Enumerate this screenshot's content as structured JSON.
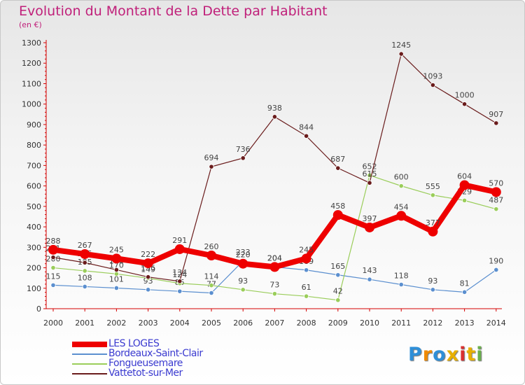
{
  "title": "Evolution du Montant de la Dette par Habitant",
  "unit": "(en €)",
  "logo": "Proxiti",
  "colors": {
    "title": "#c0207a",
    "axis": "#d40000",
    "tick_text": "#333333",
    "label_text": "#444444",
    "legend_text": "#3b3bd0"
  },
  "chart_data": {
    "type": "line",
    "title": "Evolution du Montant de la Dette par Habitant",
    "subtitle": "(en €)",
    "x": [
      "2000",
      "2001",
      "2002",
      "2003",
      "2004",
      "2005",
      "2006",
      "2007",
      "2008",
      "2009",
      "2010",
      "2011",
      "2012",
      "2013",
      "2014"
    ],
    "ylim": [
      0,
      1300
    ],
    "yticks": [
      0,
      100,
      200,
      300,
      400,
      500,
      600,
      700,
      800,
      900,
      1000,
      1100,
      1200,
      1300
    ],
    "grid": false,
    "legend_position": "bottom-left",
    "series": [
      {
        "name": "LES LOGES",
        "color": "#ee0000",
        "highlight": true,
        "values": [
          288,
          267,
          245,
          222,
          291,
          260,
          220,
          204,
          245,
          458,
          397,
          454,
          377,
          604,
          570
        ]
      },
      {
        "name": "Bordeaux-Saint-Clair",
        "color": "#5b8fcf",
        "highlight": false,
        "values": [
          115,
          108,
          101,
          93,
          85,
          77,
          233,
          204,
          189,
          165,
          143,
          118,
          93,
          81,
          190
        ]
      },
      {
        "name": "Fongueusemare",
        "color": "#9acd5a",
        "highlight": false,
        "values": [
          200,
          185,
          170,
          149,
          124,
          114,
          93,
          73,
          61,
          42,
          652,
          600,
          555,
          529,
          487
        ]
      },
      {
        "name": "Vattetot-sur-Mer",
        "color": "#6a1c1c",
        "highlight": false,
        "values": [
          251,
          225,
          190,
          155,
          134,
          694,
          736,
          938,
          844,
          687,
          615,
          1245,
          1093,
          1000,
          907
        ]
      }
    ]
  }
}
